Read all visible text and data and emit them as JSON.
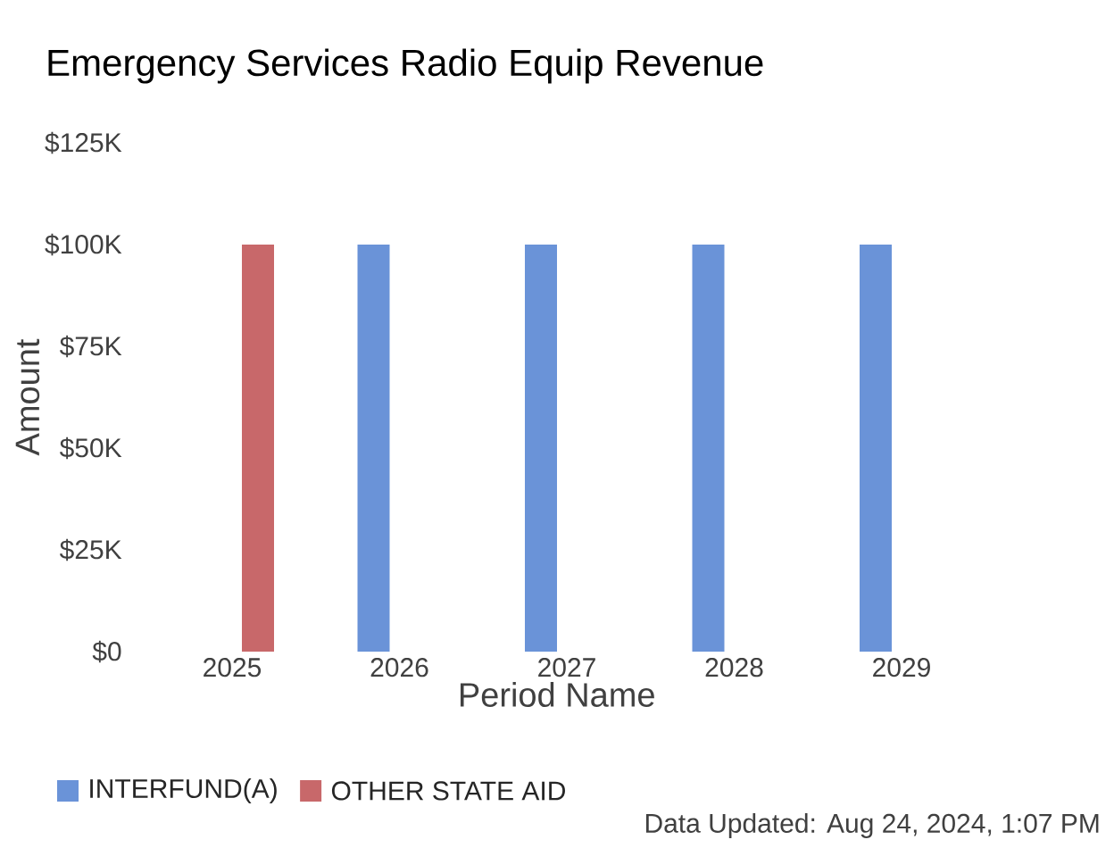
{
  "chart_data": {
    "type": "bar",
    "title": "Emergency Services Radio Equip Revenue",
    "xlabel": "Period Name",
    "ylabel": "Amount",
    "categories": [
      "2025",
      "2026",
      "2027",
      "2028",
      "2029"
    ],
    "series": [
      {
        "name": "INTERFUND(A)",
        "color": "#6a93d8",
        "values": [
          null,
          100000,
          100000,
          100000,
          100000
        ]
      },
      {
        "name": "OTHER STATE AID",
        "color": "#c8686a",
        "values": [
          100000,
          null,
          null,
          null,
          null
        ]
      }
    ],
    "ylim": [
      0,
      125000
    ],
    "yticks": [
      {
        "value": 0,
        "label": "$0"
      },
      {
        "value": 25000,
        "label": "$25K"
      },
      {
        "value": 50000,
        "label": "$50K"
      },
      {
        "value": 75000,
        "label": "$75K"
      },
      {
        "value": 100000,
        "label": "$100K"
      },
      {
        "value": 125000,
        "label": "$125K"
      }
    ],
    "grid": false,
    "legend": "bottom",
    "annotations": [
      "Data Updated: Aug 24, 2024, 1:07 PM"
    ]
  }
}
